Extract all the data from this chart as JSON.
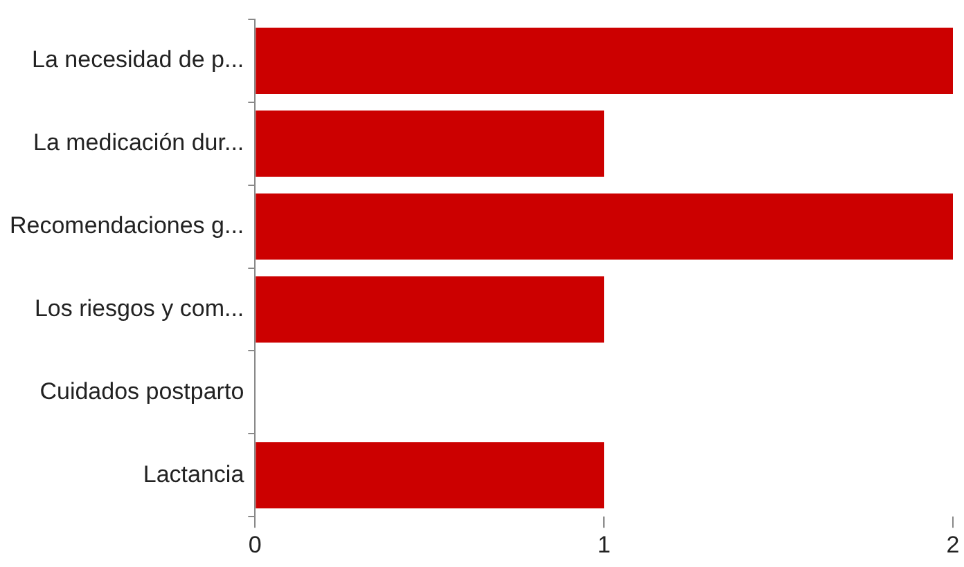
{
  "chart_data": {
    "type": "bar",
    "orientation": "horizontal",
    "categories": [
      "La necesidad de p...",
      "La medicación dur...",
      "Recomendaciones g...",
      "Los riesgos y com...",
      "Cuidados postparto",
      "Lactancia"
    ],
    "values": [
      2,
      1,
      2,
      1,
      0,
      1
    ],
    "color": "#cc0000",
    "xlim": [
      0,
      2
    ],
    "xticks": [
      0,
      1,
      2
    ],
    "grid": false,
    "legend": false
  }
}
